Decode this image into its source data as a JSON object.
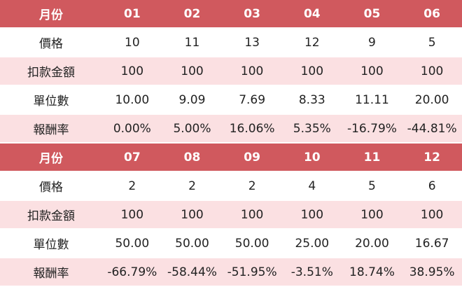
{
  "tables": [
    {
      "header": {
        "label": "月份",
        "months": [
          "01",
          "02",
          "03",
          "04",
          "05",
          "06"
        ]
      },
      "rows": [
        {
          "label": "價格",
          "values": [
            "10",
            "11",
            "13",
            "12",
            "9",
            "5"
          ]
        },
        {
          "label": "扣款金額",
          "values": [
            "100",
            "100",
            "100",
            "100",
            "100",
            "100"
          ]
        },
        {
          "label": "單位數",
          "values": [
            "10.00",
            "9.09",
            "7.69",
            "8.33",
            "11.11",
            "20.00"
          ]
        },
        {
          "label": "報酬率",
          "values": [
            "0.00%",
            "5.00%",
            "16.06%",
            "5.35%",
            "-16.79%",
            "-44.81%"
          ]
        }
      ]
    },
    {
      "header": {
        "label": "月份",
        "months": [
          "07",
          "08",
          "09",
          "10",
          "11",
          "12"
        ]
      },
      "rows": [
        {
          "label": "價格",
          "values": [
            "2",
            "2",
            "2",
            "4",
            "5",
            "6"
          ]
        },
        {
          "label": "扣款金額",
          "values": [
            "100",
            "100",
            "100",
            "100",
            "100",
            "100"
          ]
        },
        {
          "label": "單位數",
          "values": [
            "50.00",
            "50.00",
            "50.00",
            "25.00",
            "20.00",
            "16.67"
          ]
        },
        {
          "label": "報酬率",
          "values": [
            "-66.79%",
            "-58.44%",
            "-51.95%",
            "-3.51%",
            "18.74%",
            "38.95%"
          ]
        }
      ]
    }
  ],
  "colors": {
    "header_bg": "#d0595e",
    "header_text": "#ffffff",
    "row_light": "#ffffff",
    "row_tint": "#fbe0e2"
  }
}
